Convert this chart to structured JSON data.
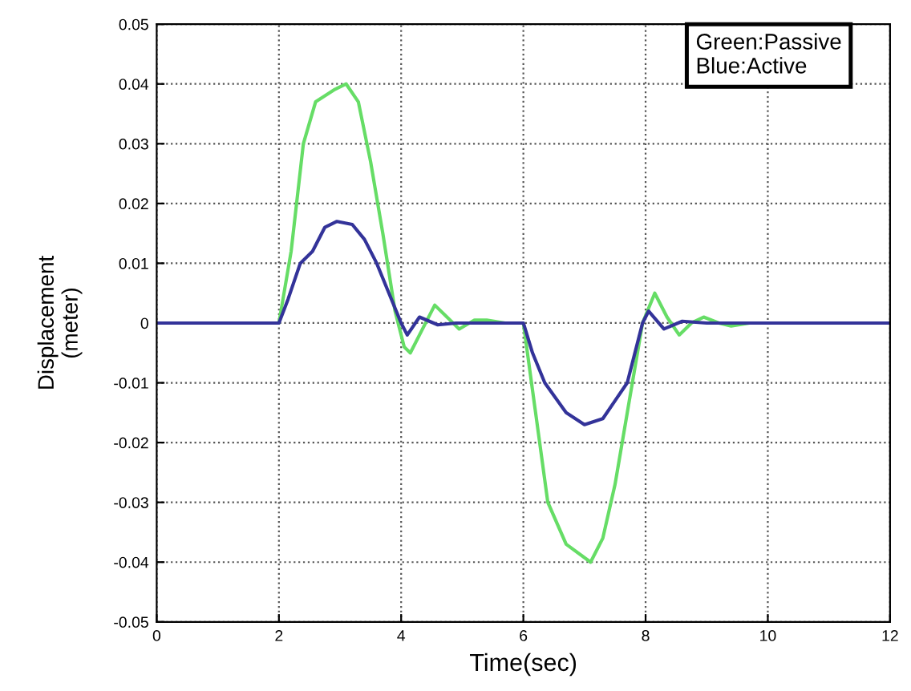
{
  "chart_data": {
    "type": "line",
    "xlabel": "Time(sec)",
    "ylabel": "Displacement\n(meter)",
    "xlim": [
      0,
      12
    ],
    "xticks": [
      0,
      2,
      4,
      6,
      8,
      10,
      12
    ],
    "ylim": [
      -0.05,
      0.05
    ],
    "yticks": [
      -0.05,
      -0.04,
      -0.03,
      -0.02,
      -0.01,
      0,
      0.01,
      0.02,
      0.03,
      0.04,
      0.05
    ],
    "grid": true,
    "line_style": "solid",
    "marker": "none",
    "annotations": [
      "Green:Passive\nBlue:Active"
    ],
    "series": [
      {
        "color": "#66dd66",
        "x": [
          0,
          2,
          2.2,
          2.4,
          2.6,
          2.9,
          3.1,
          3.3,
          3.5,
          3.7,
          3.9,
          4.05,
          4.15,
          4.3,
          4.55,
          4.75,
          4.95,
          5.2,
          5.4,
          5.7,
          6,
          6.2,
          6.4,
          6.7,
          7.1,
          7.3,
          7.5,
          7.7,
          7.95,
          8.15,
          8.35,
          8.55,
          8.75,
          8.95,
          9.2,
          9.4,
          9.7,
          12
        ],
        "values": [
          0,
          0,
          0.012,
          0.03,
          0.037,
          0.039,
          0.04,
          0.037,
          0.027,
          0.015,
          0.002,
          -0.004,
          -0.005,
          -0.002,
          0.003,
          0.001,
          -0.001,
          0.0005,
          0.0005,
          0,
          0,
          -0.015,
          -0.03,
          -0.037,
          -0.04,
          -0.036,
          -0.027,
          -0.015,
          0,
          0.005,
          0.001,
          -0.002,
          0,
          0.001,
          0,
          -0.0005,
          0,
          0
        ]
      },
      {
        "color": "#333399",
        "x": [
          0,
          2,
          2.15,
          2.35,
          2.55,
          2.75,
          2.95,
          3.2,
          3.4,
          3.6,
          3.8,
          4.0,
          4.1,
          4.3,
          4.6,
          4.9,
          6,
          6.15,
          6.35,
          6.7,
          7.0,
          7.3,
          7.5,
          7.7,
          7.95,
          8.05,
          8.3,
          8.6,
          9.0,
          12
        ],
        "values": [
          0,
          0,
          0.004,
          0.01,
          0.012,
          0.016,
          0.017,
          0.0165,
          0.014,
          0.01,
          0.005,
          0,
          -0.002,
          0.001,
          -0.0003,
          0,
          0,
          -0.005,
          -0.01,
          -0.015,
          -0.017,
          -0.016,
          -0.013,
          -0.01,
          0,
          0.002,
          -0.001,
          0.0003,
          0,
          0
        ]
      }
    ]
  }
}
